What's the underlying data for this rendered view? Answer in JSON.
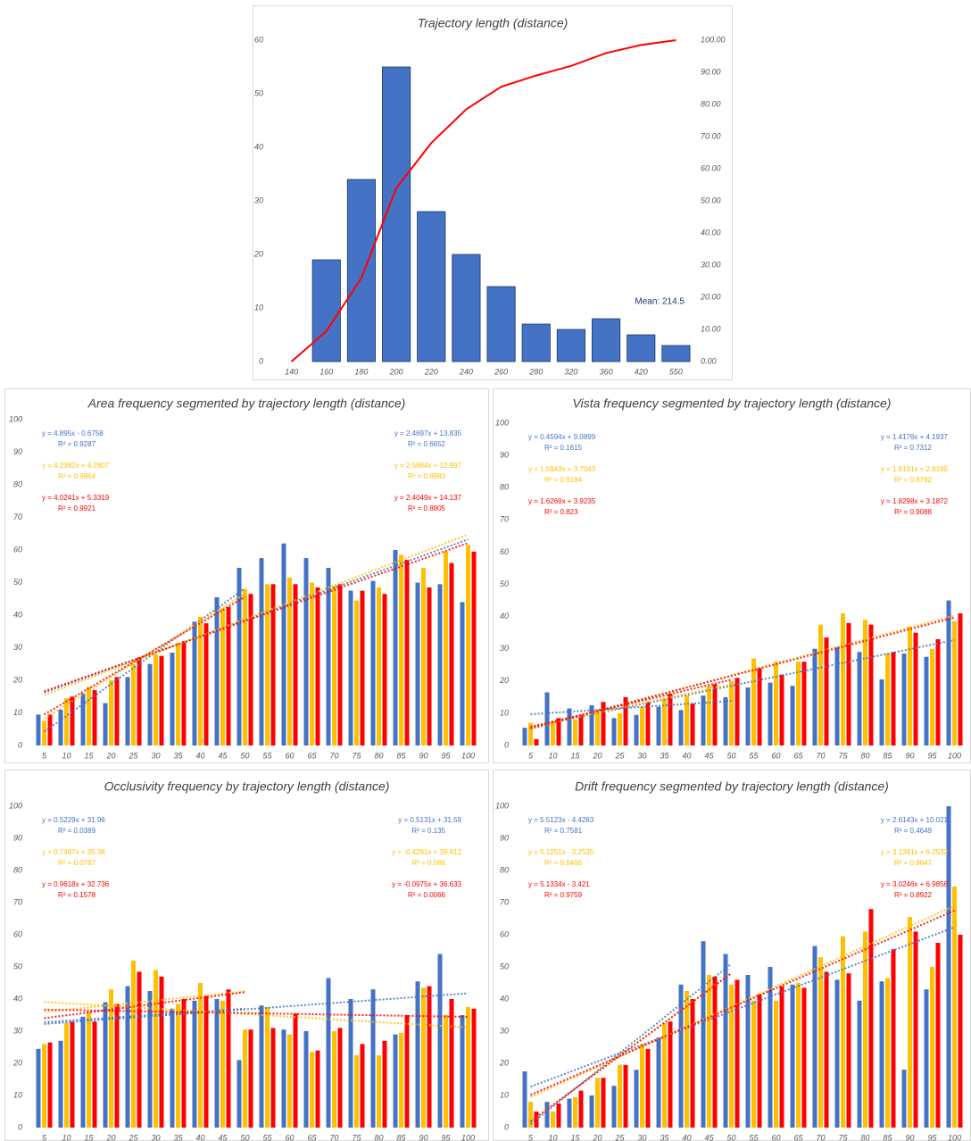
{
  "chart_data": [
    {
      "type": "bar",
      "title": "Trajectory length (distance)",
      "categories": [
        "140",
        "160",
        "180",
        "200",
        "220",
        "240",
        "260",
        "280",
        "320",
        "360",
        "420",
        "550"
      ],
      "series": [
        {
          "color": "#4472c4",
          "edgecolor": "#203864",
          "values": [
            0,
            19,
            34,
            55,
            28,
            20,
            14,
            7,
            6,
            8,
            5,
            3
          ]
        },
        {
          "type": "line",
          "axis": "y2",
          "color": "#ff0000",
          "values": [
            0,
            9.5,
            26,
            54,
            68,
            78.5,
            85.5,
            89,
            92,
            96,
            98.5,
            100
          ]
        }
      ],
      "ylim": [
        0,
        60
      ],
      "yticks": [
        0,
        10,
        20,
        30,
        40,
        50,
        60
      ],
      "y2lim": [
        0,
        100
      ],
      "y2ticks": [
        {
          "value": 0,
          "label": "0.00"
        },
        {
          "value": 10,
          "label": "10.00"
        },
        {
          "value": 20,
          "label": "20.00"
        },
        {
          "value": 30,
          "label": "30.00"
        },
        {
          "value": 40,
          "label": "40.00"
        },
        {
          "value": 50,
          "label": "50.00"
        },
        {
          "value": 60,
          "label": "60.00"
        },
        {
          "value": 70,
          "label": "70.00"
        },
        {
          "value": 80,
          "label": "80.00"
        },
        {
          "value": 90,
          "label": "90.00"
        },
        {
          "value": 100,
          "label": "100.00"
        }
      ],
      "annotation": "Mean: 214.5"
    },
    {
      "type": "bar",
      "title": "Area frequency segmented by trajectory length (distance)",
      "categories": [
        "5",
        "10",
        "15",
        "20",
        "25",
        "30",
        "35",
        "40",
        "45",
        "50",
        "55",
        "60",
        "65",
        "70",
        "75",
        "80",
        "85",
        "90",
        "95",
        "100"
      ],
      "series": [
        {
          "color": "#4472c4",
          "values": [
            9.5,
            11,
            16,
            13,
            21,
            25,
            28.5,
            38,
            45.5,
            54.5,
            57.5,
            62,
            57.5,
            54.5,
            47.5,
            50.5,
            60,
            50,
            49.5,
            44
          ],
          "trend_labels": [
            [
              "y = 4.895x - 0.6758",
              "R² = 0.9287"
            ],
            [
              "y = 2.4697x + 13.835",
              "R² = 0.6652"
            ]
          ]
        },
        {
          "color": "#ffc000",
          "values": [
            7.5,
            14.5,
            18,
            20,
            25,
            28,
            31.5,
            39.5,
            42,
            48,
            49.5,
            51.5,
            50,
            49,
            44.5,
            48.5,
            58.5,
            54.5,
            59.5,
            61.5
          ],
          "trend_labels": [
            [
              "y = 4.2382x + 4.2807",
              "R² = 0.9864"
            ],
            [
              "y = 2.5864x + 12.997",
              "R² = 0.8983"
            ]
          ]
        },
        {
          "color": "#ff0000",
          "values": [
            9.5,
            15,
            17,
            21,
            27,
            27.5,
            32,
            37.5,
            42.5,
            46.5,
            49.5,
            49.5,
            48.5,
            49.5,
            47.5,
            46.5,
            57,
            48.5,
            56,
            59.5
          ],
          "trend_labels": [
            [
              "y = 4.0241x + 5.3319",
              "R² = 0.9921"
            ],
            [
              "y = 2.4049x + 14.137",
              "R² = 0.8805"
            ]
          ]
        }
      ],
      "trendline": "linear",
      "ylim": [
        0,
        100
      ],
      "yticks": [
        0,
        10,
        20,
        30,
        40,
        50,
        60,
        70,
        80,
        90,
        100
      ]
    },
    {
      "type": "bar",
      "title": "Vista frequency segmented by trajectory length (distance)",
      "categories": [
        "5",
        "10",
        "15",
        "20",
        "25",
        "30",
        "35",
        "40",
        "45",
        "50",
        "55",
        "60",
        "65",
        "70",
        "75",
        "80",
        "85",
        "90",
        "95",
        "100"
      ],
      "series": [
        {
          "color": "#4472c4",
          "values": [
            5.5,
            16.5,
            11.5,
            12.5,
            8.5,
            9.5,
            12,
            11,
            15.5,
            15,
            18,
            19.5,
            18.5,
            30,
            30.5,
            29,
            20.5,
            28.5,
            27.5,
            45
          ],
          "trend_labels": [
            [
              "y = 0.4594x + 9.0899",
              "R² = 0.1615"
            ],
            [
              "y = 1.4176x + 4.1937",
              "R² = 0.7312"
            ]
          ]
        },
        {
          "color": "#ffc000",
          "values": [
            7,
            7.5,
            8,
            11,
            10,
            12,
            14.5,
            15.5,
            18.5,
            20,
            27,
            26,
            26,
            37.5,
            41,
            39,
            28.5,
            37,
            30,
            38.5
          ],
          "trend_labels": [
            [
              "y = 1.5843x + 3.7043",
              "R² = 0.9194"
            ],
            [
              "y = 1.9191x + 2.8189",
              "R² = 0.8792"
            ]
          ]
        },
        {
          "color": "#ff0000",
          "values": [
            2,
            8.5,
            9.5,
            13.5,
            15,
            13.5,
            16,
            13,
            19,
            21,
            24,
            22,
            26,
            33.5,
            38,
            37.5,
            29,
            35,
            33,
            41
          ],
          "trend_labels": [
            [
              "y = 1.6269x + 3.9235",
              "R² = 0.823"
            ],
            [
              "y = 1.8298x + 3.1872",
              "R² = 0.9088"
            ]
          ]
        }
      ],
      "trendline": "linear",
      "ylim": [
        0,
        100
      ],
      "yticks": [
        0,
        10,
        20,
        30,
        40,
        50,
        60,
        70,
        80,
        90,
        100
      ]
    },
    {
      "type": "bar",
      "title": "Occlusivity frequency by trajectory length (distance)",
      "categories": [
        "5",
        "10",
        "15",
        "20",
        "25",
        "30",
        "35",
        "40",
        "45",
        "50",
        "55",
        "60",
        "65",
        "70",
        "75",
        "80",
        "85",
        "90",
        "95",
        "100"
      ],
      "series": [
        {
          "color": "#4472c4",
          "values": [
            24.5,
            27,
            34.5,
            39,
            44,
            42.5,
            37,
            39.5,
            40,
            21,
            38,
            30.5,
            30,
            46.5,
            40,
            43,
            29,
            45.5,
            54,
            35
          ],
          "trend_labels": [
            [
              "y = 0.5229x + 31.96",
              "R² = 0.0389"
            ],
            [
              "y = 0.5131x + 31.59",
              "R² = 0.135"
            ]
          ]
        },
        {
          "color": "#ffc000",
          "values": [
            26,
            32.5,
            36,
            43,
            52,
            49,
            38.5,
            45,
            39.5,
            30.5,
            37.5,
            29,
            23.5,
            30,
            22.5,
            22.5,
            29.5,
            43.5,
            35,
            37.5
          ],
          "trend_labels": [
            [
              "y = 0.7497x + 35.38",
              "R² = 0.0787"
            ],
            [
              "y = -0.4281x + 39.812",
              "R² = 0.086"
            ]
          ]
        },
        {
          "color": "#ff0000",
          "values": [
            26.5,
            33,
            33,
            38.5,
            48.5,
            47,
            40,
            41,
            43,
            30.5,
            31,
            35.5,
            24,
            31,
            26,
            27,
            35,
            44,
            40,
            37
          ],
          "trend_labels": [
            [
              "y = 0.9618x + 32.736",
              "R² = 0.1578"
            ],
            [
              "y = -0.0975x + 36.633",
              "R² = 0.0066"
            ]
          ]
        }
      ],
      "trendline": "linear",
      "ylim": [
        0,
        100
      ],
      "yticks": [
        0,
        10,
        20,
        30,
        40,
        50,
        60,
        70,
        80,
        90,
        100
      ]
    },
    {
      "type": "bar",
      "title": "Drift frequency segmented by trajectory length (distance)",
      "categories": [
        "5",
        "10",
        "15",
        "20",
        "25",
        "30",
        "35",
        "40",
        "45",
        "50",
        "55",
        "60",
        "65",
        "70",
        "75",
        "80",
        "85",
        "90",
        "95",
        "100"
      ],
      "series": [
        {
          "color": "#4472c4",
          "values": [
            17.5,
            8,
            9,
            10,
            13,
            18,
            28,
            44.5,
            58,
            54,
            47.5,
            50,
            44.5,
            56.5,
            46,
            39.5,
            45.5,
            18,
            43,
            100
          ],
          "trend_labels": [
            [
              "y = 5.5123x - 4.4283",
              "R² = 0.7581"
            ],
            [
              "y = 2.6143x + 10.021",
              "R² = 0.4649"
            ]
          ]
        },
        {
          "color": "#ffc000",
          "values": [
            8,
            5,
            9.5,
            15.5,
            19.5,
            26,
            32.5,
            42.5,
            47.5,
            44.5,
            39.5,
            39.5,
            45,
            53,
            59.5,
            61,
            46.5,
            65.5,
            50,
            75
          ],
          "trend_labels": [
            [
              "y = 5.1251x - 3.2535",
              "R² = 0.9466"
            ],
            [
              "y = 3.1391x + 6.2532",
              "R² = 0.8647"
            ]
          ]
        },
        {
          "color": "#ff0000",
          "values": [
            5,
            7.5,
            11.5,
            15.5,
            19.5,
            24.5,
            33,
            40,
            47,
            46,
            41.5,
            44,
            43.5,
            48.5,
            48,
            68,
            55.5,
            61,
            57.5,
            60
          ],
          "trend_labels": [
            [
              "y = 5.1334x - 3.421",
              "R² = 0.9759"
            ],
            [
              "y = 3.0246x + 6.9856",
              "R² = 0.8922"
            ]
          ]
        }
      ],
      "trendline": "linear",
      "ylim": [
        0,
        100
      ],
      "yticks": [
        0,
        10,
        20,
        30,
        40,
        50,
        60,
        70,
        80,
        90,
        100
      ]
    }
  ]
}
